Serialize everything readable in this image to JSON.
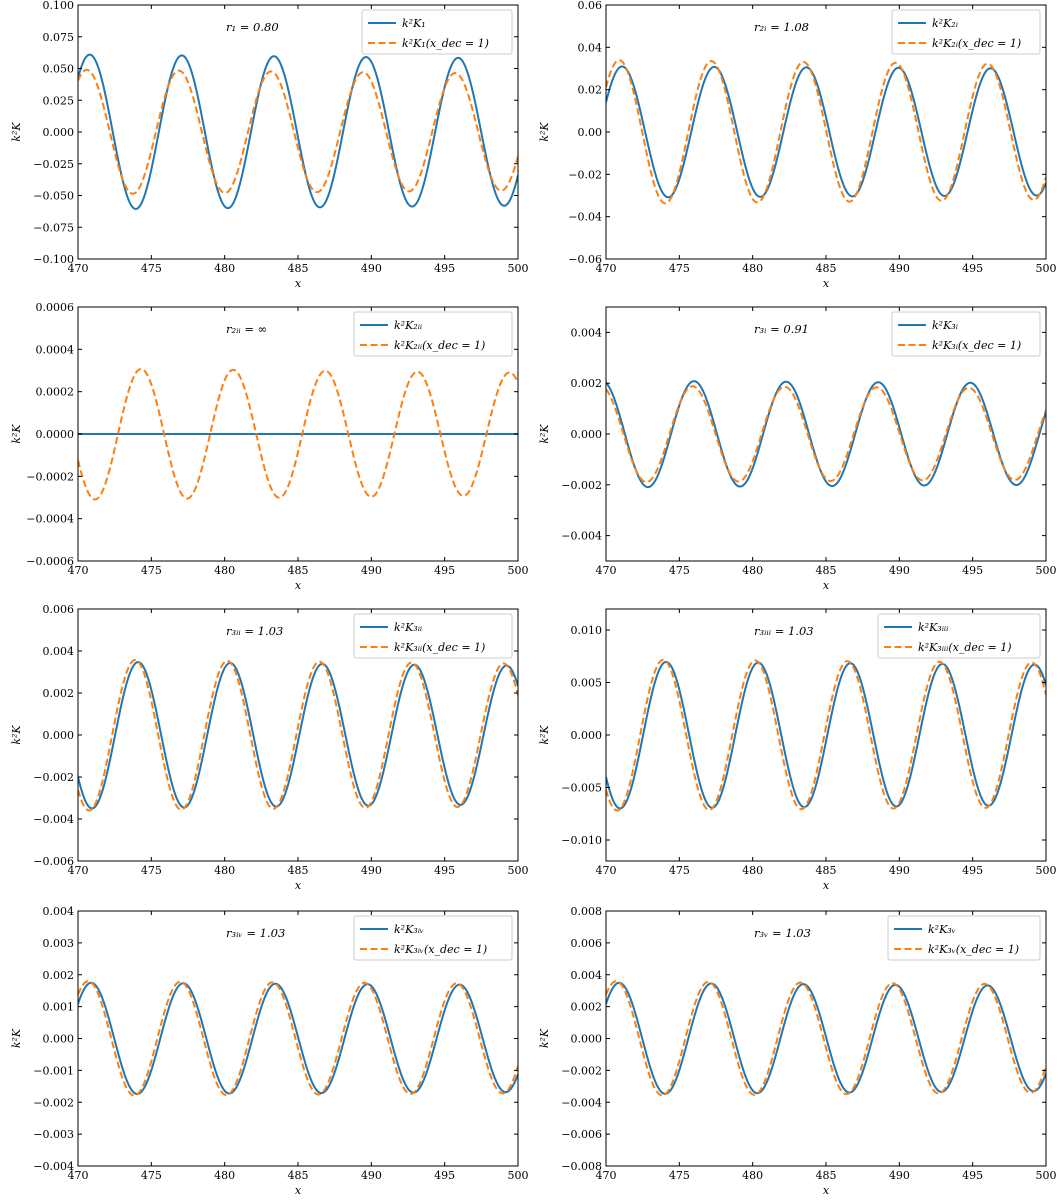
{
  "chart_data": [
    {
      "type": "line",
      "annotation": "r₁ = 0.80",
      "xlabel": "x",
      "ylabel": "k²K",
      "xlim": [
        470,
        500
      ],
      "ylim": [
        -0.1,
        0.1
      ],
      "xticks": [
        "470",
        "475",
        "480",
        "485",
        "490",
        "495",
        "500"
      ],
      "yticks": [
        "0.100",
        "0.075",
        "0.050",
        "0.025",
        "0.000",
        "−0.025",
        "−0.050",
        "−0.075",
        "−0.100"
      ],
      "legend_position": "upper right",
      "series": [
        {
          "name": "k²K₁",
          "style": "solid",
          "color": "#1f77b4",
          "amplitude": 0.061,
          "amplitude_end": 0.058,
          "period": 6.28,
          "peak_x": 470.8
        },
        {
          "name": "k²K₁(x_dec = 1)",
          "style": "dashed",
          "color": "#ff7f0e",
          "amplitude": 0.049,
          "amplitude_end": 0.046,
          "period": 6.28,
          "peak_x": 470.6
        }
      ]
    },
    {
      "type": "line",
      "annotation": "r₂ᵢ = 1.08",
      "xlabel": "x",
      "ylabel": "k²K",
      "xlim": [
        470,
        500
      ],
      "ylim": [
        -0.06,
        0.06
      ],
      "xticks": [
        "470",
        "475",
        "480",
        "485",
        "490",
        "495",
        "500"
      ],
      "yticks": [
        "0.06",
        "0.04",
        "0.02",
        "0.00",
        "−0.02",
        "−0.04",
        "−0.06"
      ],
      "legend_position": "upper right",
      "series": [
        {
          "name": "k²K₂ᵢ",
          "style": "solid",
          "color": "#1f77b4",
          "amplitude": 0.031,
          "amplitude_end": 0.03,
          "period": 6.28,
          "peak_x": 471.1
        },
        {
          "name": "k²K₂ᵢ(x_dec = 1)",
          "style": "dashed",
          "color": "#ff7f0e",
          "amplitude": 0.034,
          "amplitude_end": 0.032,
          "period": 6.28,
          "peak_x": 470.9
        }
      ]
    },
    {
      "type": "line",
      "annotation": "r₂ᵢᵢ = ∞",
      "xlabel": "x",
      "ylabel": "k²K",
      "xlim": [
        470,
        500
      ],
      "ylim": [
        -0.0006,
        0.0006
      ],
      "xticks": [
        "470",
        "475",
        "480",
        "485",
        "490",
        "495",
        "500"
      ],
      "yticks": [
        "0.0006",
        "0.0004",
        "0.0002",
        "0.0000",
        "−0.0002",
        "−0.0004",
        "−0.0006"
      ],
      "legend_position": "upper right",
      "series": [
        {
          "name": "k²K₂ᵢᵢ",
          "style": "solid",
          "color": "#1f77b4",
          "amplitude": 0,
          "amplitude_end": 0,
          "period": 6.28,
          "peak_x": 474.3
        },
        {
          "name": "k²K₂ᵢᵢ(x_dec = 1)",
          "style": "dashed",
          "color": "#ff7f0e",
          "amplitude": 0.00031,
          "amplitude_end": 0.00029,
          "period": 6.28,
          "peak_x": 474.3
        }
      ]
    },
    {
      "type": "line",
      "annotation": "r₃ᵢ = 0.91",
      "xlabel": "x",
      "ylabel": "k²K",
      "xlim": [
        470,
        500
      ],
      "ylim": [
        -0.005,
        0.005
      ],
      "xticks": [
        "470",
        "475",
        "480",
        "485",
        "490",
        "495",
        "500"
      ],
      "yticks": [
        "0.004",
        "0.002",
        "0.000",
        "−0.002",
        "−0.004"
      ],
      "legend_position": "upper right",
      "series": [
        {
          "name": "k²K₃ᵢ",
          "style": "solid",
          "color": "#1f77b4",
          "amplitude": 0.0021,
          "amplitude_end": 0.002,
          "period": 6.28,
          "peak_x": 476.0
        },
        {
          "name": "k²K₃ᵢ(x_dec = 1)",
          "style": "dashed",
          "color": "#ff7f0e",
          "amplitude": 0.0019,
          "amplitude_end": 0.0018,
          "period": 6.28,
          "peak_x": 475.9
        }
      ]
    },
    {
      "type": "line",
      "annotation": "r₃ᵢᵢ = 1.03",
      "xlabel": "x",
      "ylabel": "k²K",
      "xlim": [
        470,
        500
      ],
      "ylim": [
        -0.006,
        0.006
      ],
      "xticks": [
        "470",
        "475",
        "480",
        "485",
        "490",
        "495",
        "500"
      ],
      "yticks": [
        "0.006",
        "0.004",
        "0.002",
        "0.000",
        "−0.002",
        "−0.004",
        "−0.006"
      ],
      "legend_position": "upper right",
      "series": [
        {
          "name": "k²K₃ᵢᵢ",
          "style": "solid",
          "color": "#1f77b4",
          "amplitude": 0.0035,
          "amplitude_end": 0.0033,
          "period": 6.28,
          "peak_x": 474.1
        },
        {
          "name": "k²K₃ᵢᵢ(x_dec = 1)",
          "style": "dashed",
          "color": "#ff7f0e",
          "amplitude": 0.0036,
          "amplitude_end": 0.0034,
          "period": 6.28,
          "peak_x": 473.9
        }
      ]
    },
    {
      "type": "line",
      "annotation": "r₃ᵢᵢᵢ = 1.03",
      "xlabel": "x",
      "ylabel": "k²K",
      "xlim": [
        470,
        500
      ],
      "ylim": [
        -0.012,
        0.012
      ],
      "xticks": [
        "470",
        "475",
        "480",
        "485",
        "490",
        "495",
        "500"
      ],
      "yticks": [
        "0.010",
        "0.005",
        "0.000",
        "−0.005",
        "−0.010"
      ],
      "legend_position": "upper right",
      "series": [
        {
          "name": "k²K₃ᵢᵢᵢ",
          "style": "solid",
          "color": "#1f77b4",
          "amplitude": 0.007,
          "amplitude_end": 0.0067,
          "period": 6.28,
          "peak_x": 474.1
        },
        {
          "name": "k²K₃ᵢᵢᵢ(x_dec = 1)",
          "style": "dashed",
          "color": "#ff7f0e",
          "amplitude": 0.0072,
          "amplitude_end": 0.0069,
          "period": 6.28,
          "peak_x": 473.9
        }
      ]
    },
    {
      "type": "line",
      "annotation": "r₃ᵢᵥ = 1.03",
      "xlabel": "x",
      "ylabel": "k²K",
      "xlim": [
        470,
        500
      ],
      "ylim": [
        -0.004,
        0.004
      ],
      "xticks": [
        "470",
        "475",
        "480",
        "485",
        "490",
        "495",
        "500"
      ],
      "yticks": [
        "0.004",
        "0.003",
        "0.002",
        "0.001",
        "0.000",
        "−0.001",
        "−0.002",
        "−0.003",
        "−0.004"
      ],
      "legend_position": "upper right",
      "series": [
        {
          "name": "k²K₃ᵢᵥ",
          "style": "solid",
          "color": "#1f77b4",
          "amplitude": 0.00175,
          "amplitude_end": 0.00168,
          "period": 6.28,
          "peak_x": 470.9
        },
        {
          "name": "k²K₃ᵢᵥ(x_dec = 1)",
          "style": "dashed",
          "color": "#ff7f0e",
          "amplitude": 0.0018,
          "amplitude_end": 0.00172,
          "period": 6.28,
          "peak_x": 470.7
        }
      ]
    },
    {
      "type": "line",
      "annotation": "r₃ᵥ = 1.03",
      "xlabel": "x",
      "ylabel": "k²K",
      "xlim": [
        470,
        500
      ],
      "ylim": [
        -0.008,
        0.008
      ],
      "xticks": [
        "470",
        "475",
        "480",
        "485",
        "490",
        "495",
        "500"
      ],
      "yticks": [
        "0.008",
        "0.006",
        "0.004",
        "0.002",
        "0.000",
        "−0.002",
        "−0.004",
        "−0.006",
        "−0.008"
      ],
      "legend_position": "upper right",
      "series": [
        {
          "name": "k²K₃ᵥ",
          "style": "solid",
          "color": "#1f77b4",
          "amplitude": 0.0035,
          "amplitude_end": 0.0033,
          "period": 6.28,
          "peak_x": 470.9
        },
        {
          "name": "k²K₃ᵥ(x_dec = 1)",
          "style": "dashed",
          "color": "#ff7f0e",
          "amplitude": 0.0036,
          "amplitude_end": 0.0034,
          "period": 6.28,
          "peak_x": 470.7
        }
      ]
    }
  ]
}
